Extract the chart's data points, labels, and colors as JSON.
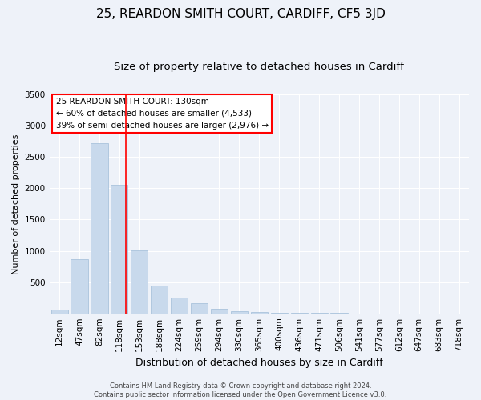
{
  "title": "25, REARDON SMITH COURT, CARDIFF, CF5 3JD",
  "subtitle": "Size of property relative to detached houses in Cardiff",
  "xlabel": "Distribution of detached houses by size in Cardiff",
  "ylabel": "Number of detached properties",
  "bar_color": "#c8d9ec",
  "bar_edge_color": "#a0bcd8",
  "background_color": "#eef2f9",
  "categories": [
    "12sqm",
    "47sqm",
    "82sqm",
    "118sqm",
    "153sqm",
    "188sqm",
    "224sqm",
    "259sqm",
    "294sqm",
    "330sqm",
    "365sqm",
    "400sqm",
    "436sqm",
    "471sqm",
    "506sqm",
    "541sqm",
    "577sqm",
    "612sqm",
    "647sqm",
    "683sqm",
    "718sqm"
  ],
  "values": [
    60,
    860,
    2720,
    2060,
    1010,
    450,
    250,
    165,
    70,
    40,
    25,
    15,
    8,
    5,
    3,
    2,
    1,
    1,
    0,
    0,
    0
  ],
  "ylim": [
    0,
    3500
  ],
  "yticks": [
    0,
    500,
    1000,
    1500,
    2000,
    2500,
    3000,
    3500
  ],
  "red_line_x": 3.34,
  "annotation_title": "25 REARDON SMITH COURT: 130sqm",
  "annotation_line1": "← 60% of detached houses are smaller (4,533)",
  "annotation_line2": "39% of semi-detached houses are larger (2,976) →",
  "footer_line1": "Contains HM Land Registry data © Crown copyright and database right 2024.",
  "footer_line2": "Contains public sector information licensed under the Open Government Licence v3.0.",
  "grid_color": "#ffffff",
  "title_fontsize": 11,
  "subtitle_fontsize": 9.5,
  "xlabel_fontsize": 9,
  "ylabel_fontsize": 8,
  "tick_fontsize": 7.5,
  "annotation_fontsize": 7.5,
  "footer_fontsize": 6
}
